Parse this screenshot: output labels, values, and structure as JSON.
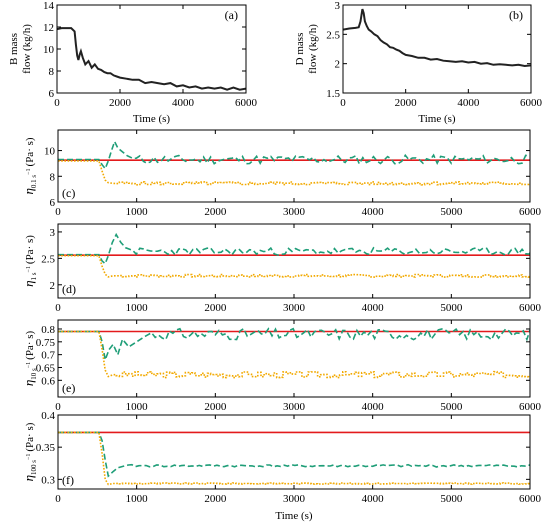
{
  "chart_data": [
    {
      "id": "a",
      "type": "line",
      "panel_label": "(a)",
      "ylabel": "B mass\nflow (kg/h)",
      "xlabel": "Time (s)",
      "xlim": [
        0,
        6000
      ],
      "ylim": [
        6,
        14
      ],
      "xticks": [
        0,
        2000,
        4000,
        6000
      ],
      "yticks": [
        6,
        8,
        10,
        12,
        14
      ],
      "series": [
        {
          "color": "#222222",
          "style": "solid",
          "x": [
            0,
            150,
            300,
            450,
            560,
            600,
            640,
            680,
            720,
            760,
            820,
            900,
            1000,
            1100,
            1200,
            1300,
            1400,
            1500,
            1600,
            1700,
            1800,
            1900,
            2000,
            2200,
            2400,
            2600,
            2800,
            3000,
            3200,
            3400,
            3600,
            3800,
            4000,
            4200,
            4400,
            4600,
            4800,
            5000,
            5200,
            5400,
            5600,
            5800,
            6000
          ],
          "y": [
            11.8,
            11.9,
            11.9,
            11.9,
            11.6,
            10.4,
            9.4,
            9.0,
            9.5,
            9.8,
            9.2,
            8.6,
            8.9,
            8.3,
            8.6,
            8.2,
            8.1,
            7.9,
            7.8,
            7.8,
            7.6,
            7.5,
            7.4,
            7.3,
            7.2,
            7.2,
            6.9,
            7.0,
            6.9,
            6.8,
            6.9,
            6.6,
            6.7,
            6.5,
            6.6,
            6.4,
            6.5,
            6.4,
            6.5,
            6.3,
            6.5,
            6.3,
            6.4
          ]
        }
      ]
    },
    {
      "id": "b",
      "type": "line",
      "panel_label": "(b)",
      "ylabel": "D mass\nflow (kg/h)",
      "xlabel": "Time (s)",
      "xlim": [
        0,
        6000
      ],
      "ylim": [
        1.5,
        3
      ],
      "xticks": [
        0,
        2000,
        4000,
        6000
      ],
      "yticks": [
        1.5,
        2,
        2.5,
        3
      ],
      "series": [
        {
          "color": "#222222",
          "style": "solid",
          "x": [
            0,
            200,
            400,
            500,
            560,
            620,
            660,
            700,
            760,
            820,
            900,
            1000,
            1100,
            1200,
            1300,
            1400,
            1500,
            1600,
            1700,
            1800,
            1900,
            2000,
            2200,
            2400,
            2600,
            2800,
            3000,
            3200,
            3400,
            3600,
            3800,
            4000,
            4200,
            4400,
            4600,
            4800,
            5000,
            5200,
            5400,
            5600,
            5800,
            6000
          ],
          "y": [
            2.58,
            2.6,
            2.61,
            2.62,
            2.72,
            2.93,
            2.86,
            2.72,
            2.64,
            2.58,
            2.55,
            2.5,
            2.47,
            2.4,
            2.36,
            2.33,
            2.28,
            2.27,
            2.24,
            2.22,
            2.18,
            2.15,
            2.13,
            2.1,
            2.1,
            2.07,
            2.08,
            2.05,
            2.04,
            2.03,
            2.04,
            2.02,
            2.03,
            2.0,
            2.01,
            1.98,
            1.99,
            1.98,
            1.97,
            1.98,
            1.96,
            1.97
          ]
        }
      ]
    },
    {
      "id": "c",
      "type": "line",
      "panel_label": "(c)",
      "ylabel": "η",
      "ylabel_sub": "0.1 s",
      "ylabel_sup": "−1",
      "ylabel_unit": "(Pa· s)",
      "xlim": [
        0,
        6000
      ],
      "ylim": [
        6,
        11.6
      ],
      "xticks": [
        0,
        1000,
        2000,
        3000,
        4000,
        5000,
        6000
      ],
      "yticks": [
        6,
        8,
        10
      ],
      "reference": 9.25,
      "series": [
        {
          "color": "#e31a1c",
          "style": "solid",
          "x": [
            0,
            6000
          ],
          "y": [
            9.25,
            9.25
          ]
        },
        {
          "color": "#1f9e78",
          "style": "dash",
          "base": 9.3,
          "jitter": 0.35,
          "seed": 11,
          "x": [
            0,
            520,
            560,
            600,
            640,
            680,
            720,
            760,
            820,
            880,
            950
          ],
          "y": [
            9.3,
            9.3,
            8.9,
            8.6,
            9.2,
            10.0,
            10.7,
            10.2,
            9.9,
            9.6,
            9.4
          ]
        },
        {
          "color": "#f2a900",
          "style": "dot",
          "base": 7.45,
          "jitter": 0.12,
          "seed": 5,
          "x": [
            0,
            520,
            560,
            600,
            640,
            700
          ],
          "y": [
            9.2,
            9.2,
            8.4,
            7.7,
            7.5,
            7.45
          ]
        }
      ]
    },
    {
      "id": "d",
      "type": "line",
      "panel_label": "(d)",
      "ylabel": "η",
      "ylabel_sub": "1 s",
      "ylabel_sup": "−1",
      "ylabel_unit": "(Pa· s)",
      "xlim": [
        0,
        6000
      ],
      "ylim": [
        1.75,
        3.15
      ],
      "xticks": [
        0,
        1000,
        2000,
        3000,
        4000,
        5000,
        6000
      ],
      "yticks": [
        2,
        2.5,
        3
      ],
      "reference": 2.56,
      "series": [
        {
          "color": "#e31a1c",
          "style": "solid",
          "x": [
            0,
            6000
          ],
          "y": [
            2.56,
            2.56
          ]
        },
        {
          "color": "#1f9e78",
          "style": "dash",
          "base": 2.63,
          "jitter": 0.07,
          "seed": 23,
          "x": [
            0,
            520,
            560,
            600,
            640,
            690,
            740,
            800,
            860,
            950
          ],
          "y": [
            2.57,
            2.57,
            2.45,
            2.4,
            2.55,
            2.8,
            2.95,
            2.8,
            2.7,
            2.65
          ]
        },
        {
          "color": "#f2a900",
          "style": "dot",
          "base": 2.17,
          "jitter": 0.025,
          "seed": 7,
          "x": [
            0,
            520,
            560,
            600,
            640,
            700
          ],
          "y": [
            2.55,
            2.55,
            2.35,
            2.2,
            2.15,
            2.17
          ]
        }
      ]
    },
    {
      "id": "e",
      "type": "line",
      "panel_label": "(e)",
      "ylabel": "η",
      "ylabel_sub": "10 s",
      "ylabel_sup": "−1",
      "ylabel_unit": "(Pa· s)",
      "xlim": [
        0,
        6000
      ],
      "ylim": [
        0.535,
        0.835
      ],
      "xticks": [
        0,
        1000,
        2000,
        3000,
        4000,
        5000,
        6000
      ],
      "yticks": [
        0.6,
        0.65,
        0.7,
        0.75,
        0.8
      ],
      "reference": 0.79,
      "series": [
        {
          "color": "#e31a1c",
          "style": "solid",
          "x": [
            0,
            6000
          ],
          "y": [
            0.79,
            0.79
          ]
        },
        {
          "color": "#1f9e78",
          "style": "dash",
          "base": 0.78,
          "jitter": 0.022,
          "seed": 31,
          "x": [
            0,
            520,
            560,
            600,
            650,
            700,
            760,
            820,
            900,
            1000,
            1100
          ],
          "y": [
            0.79,
            0.79,
            0.75,
            0.68,
            0.72,
            0.74,
            0.7,
            0.76,
            0.73,
            0.75,
            0.77
          ]
        },
        {
          "color": "#f2a900",
          "style": "dot",
          "base": 0.622,
          "jitter": 0.012,
          "seed": 3,
          "x": [
            0,
            520,
            560,
            600,
            640,
            700
          ],
          "y": [
            0.79,
            0.79,
            0.72,
            0.64,
            0.615,
            0.622
          ]
        }
      ]
    },
    {
      "id": "f",
      "type": "line",
      "panel_label": "(f)",
      "ylabel": "η",
      "ylabel_sub": "100 s",
      "ylabel_sup": "−1",
      "ylabel_unit": "(Pa· s)",
      "xlabel": "Time (s)",
      "xlim": [
        0,
        6000
      ],
      "ylim": [
        0.285,
        0.4
      ],
      "xticks": [
        0,
        1000,
        2000,
        3000,
        4000,
        5000,
        6000
      ],
      "yticks": [
        0.3,
        0.35,
        0.4
      ],
      "reference": 0.373,
      "series": [
        {
          "color": "#e31a1c",
          "style": "solid",
          "x": [
            0,
            6000
          ],
          "y": [
            0.373,
            0.373
          ]
        },
        {
          "color": "#1f9e78",
          "style": "dash",
          "base": 0.321,
          "jitter": 0.0018,
          "seed": 41,
          "x": [
            0,
            520,
            560,
            600,
            640,
            700,
            760,
            850
          ],
          "y": [
            0.373,
            0.373,
            0.36,
            0.33,
            0.305,
            0.312,
            0.318,
            0.321
          ]
        },
        {
          "color": "#f2a900",
          "style": "dot",
          "base": 0.2935,
          "jitter": 0.0009,
          "seed": 9,
          "x": [
            0,
            520,
            560,
            600,
            640,
            700
          ],
          "y": [
            0.373,
            0.373,
            0.34,
            0.3,
            0.292,
            0.2935
          ]
        }
      ]
    }
  ]
}
